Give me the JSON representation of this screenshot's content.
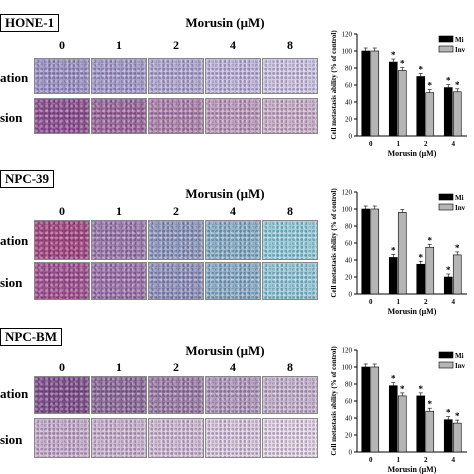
{
  "unit_label": "Morusin (μM)",
  "doses": [
    "0",
    "1",
    "2",
    "4",
    "8"
  ],
  "row_labels": [
    "ation",
    "sion"
  ],
  "panels": [
    {
      "cell_line": "HONE-1",
      "colors": {
        "migration": [
          "#9b97c6",
          "#a29ec9",
          "#b0acd2",
          "#c0bcdc",
          "#cfcbe5"
        ],
        "invasion": [
          "#8b4d8c",
          "#9a6697",
          "#ad84aa",
          "#bf9fbc",
          "#cdb5ca"
        ]
      }
    },
    {
      "cell_line": "NPC-39",
      "colors": {
        "migration": [
          "#a3447e",
          "#9a7aaa",
          "#8b9cbe",
          "#86b6c7",
          "#8fd4db"
        ],
        "invasion": [
          "#a04f8c",
          "#9a73a9",
          "#8d96bd",
          "#86b4c8",
          "#8fd2da"
        ]
      }
    },
    {
      "cell_line": "NPC-BM",
      "colors": {
        "migration": [
          "#7b4d86",
          "#8a6a94",
          "#9b7ea5",
          "#b09cbc",
          "#c7b8cf"
        ],
        "invasion": [
          "#c8b2cd",
          "#cdb9d0",
          "#d3c1d6",
          "#dccfe0",
          "#e6dce8"
        ]
      }
    }
  ],
  "chart_data": [
    {
      "type": "bar",
      "categories": [
        "0",
        "1",
        "2",
        "4"
      ],
      "series": [
        {
          "name": "Mi",
          "values": [
            100,
            87,
            70,
            57
          ]
        },
        {
          "name": "Inv",
          "values": [
            100,
            77,
            51,
            52
          ]
        }
      ],
      "significance": [
        [
          false,
          true,
          true,
          true
        ],
        [
          false,
          true,
          true,
          true
        ]
      ],
      "ylabel": "Cell metastasis ability (% of control)",
      "xlabel": "Morusin (μM)",
      "ylim": [
        0,
        120
      ],
      "yticks": [
        0,
        20,
        40,
        60,
        80,
        100,
        120
      ],
      "legend": "top-right",
      "grid": false
    },
    {
      "type": "bar",
      "categories": [
        "0",
        "1",
        "2",
        "4"
      ],
      "series": [
        {
          "name": "Mi",
          "values": [
            100,
            43,
            35,
            20
          ]
        },
        {
          "name": "Inv",
          "values": [
            100,
            96,
            55,
            46
          ]
        }
      ],
      "significance": [
        [
          false,
          true,
          true,
          true
        ],
        [
          false,
          false,
          true,
          true
        ]
      ],
      "ylabel": "Cell metastasis ability (% of control)",
      "xlabel": "Morusin (μM)",
      "ylim": [
        0,
        120
      ],
      "yticks": [
        0,
        20,
        40,
        60,
        80,
        100,
        120
      ],
      "legend": "top-right",
      "grid": false
    },
    {
      "type": "bar",
      "categories": [
        "0",
        "1",
        "2",
        "4"
      ],
      "series": [
        {
          "name": "Mi",
          "values": [
            100,
            78,
            66,
            38
          ]
        },
        {
          "name": "Inv",
          "values": [
            100,
            66,
            48,
            34
          ]
        }
      ],
      "significance": [
        [
          false,
          true,
          true,
          true
        ],
        [
          false,
          true,
          true,
          true
        ]
      ],
      "ylabel": "Cell metastasis ability (% of control)",
      "xlabel": "Morusin (μM)",
      "ylim": [
        0,
        120
      ],
      "yticks": [
        0,
        20,
        40,
        60,
        80,
        100,
        120
      ],
      "legend": "top-right",
      "grid": false
    }
  ]
}
